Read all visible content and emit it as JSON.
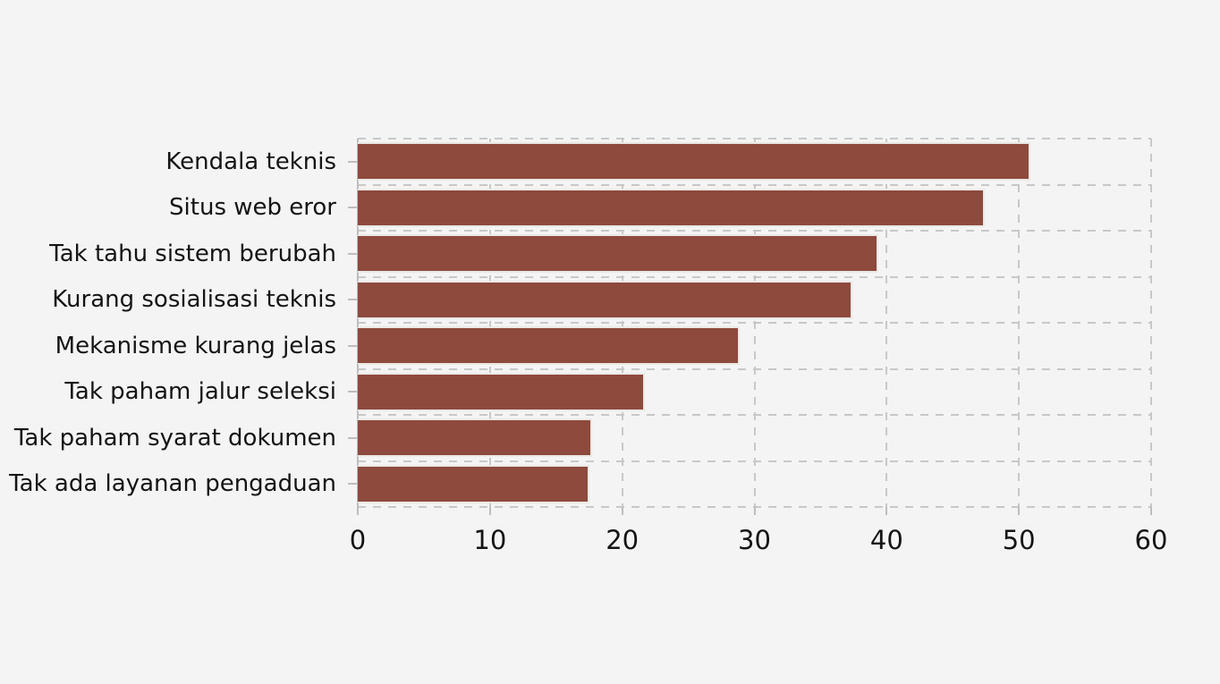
{
  "figure": {
    "title": ""
  },
  "chart_data": {
    "type": "bar",
    "orientation": "horizontal",
    "title": "",
    "xlabel": "",
    "ylabel": "",
    "categories": [
      "Kendala teknis",
      "Situs web eror",
      "Tak tahu sistem berubah",
      "Kurang sosialisasi teknis",
      "Mekanisme kurang jelas",
      "Tak paham jalur seleksi",
      "Tak paham syarat dokumen",
      "Tak ada layanan pengaduan"
    ],
    "values": [
      50.9,
      47.4,
      39.4,
      37.4,
      28.9,
      21.7,
      17.7,
      17.5
    ],
    "xlim": [
      0,
      60
    ],
    "xticks": [
      0,
      10,
      20,
      30,
      40,
      50,
      60
    ],
    "grid": "dashed",
    "legend": "none",
    "colors": {
      "bar": "#8d4a3d",
      "bar_edge": "#ebe8e4",
      "background": "#f4f4f5",
      "grid": "#c8c8c8",
      "spine": "#bdbdbd",
      "text": "#141414"
    }
  }
}
